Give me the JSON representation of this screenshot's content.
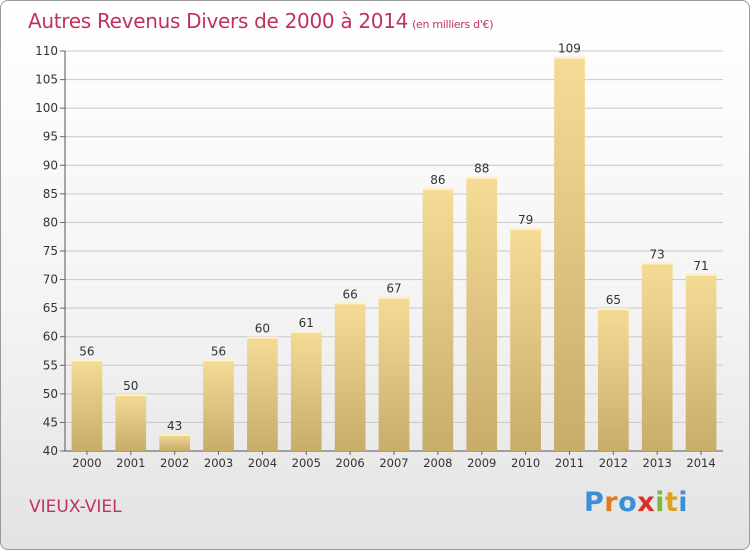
{
  "header": {
    "title": "Autres Revenus Divers de 2000 à 2014",
    "unit_note": "(en milliers d'€)"
  },
  "footer": {
    "place": "VIEUX-VIEL",
    "brand_letters": [
      "P",
      "r",
      "o",
      "x",
      "i",
      "t",
      "i"
    ],
    "brand_colors": [
      "#3a8fd6",
      "#e07b1f",
      "#3a8fd6",
      "#d9302c",
      "#7ab83a",
      "#e0a01f",
      "#3a8fd6"
    ]
  },
  "colors": {
    "title": "#c0325a",
    "bar_light": "#f5dc96",
    "bar_dark": "#c7ac6a",
    "grid": "#c8c8c8",
    "text": "#333333"
  },
  "chart_data": {
    "type": "bar",
    "title": "Autres Revenus Divers de 2000 à 2014",
    "subtitle": "(en milliers d'€)",
    "xlabel": "",
    "ylabel": "",
    "ylim": [
      40,
      110
    ],
    "ytick_step": 5,
    "grid": true,
    "categories": [
      "2000",
      "2001",
      "2002",
      "2003",
      "2004",
      "2005",
      "2006",
      "2007",
      "2008",
      "2009",
      "2010",
      "2011",
      "2012",
      "2013",
      "2014"
    ],
    "values": [
      56,
      50,
      43,
      56,
      60,
      61,
      66,
      67,
      86,
      88,
      79,
      109,
      65,
      73,
      71
    ]
  }
}
